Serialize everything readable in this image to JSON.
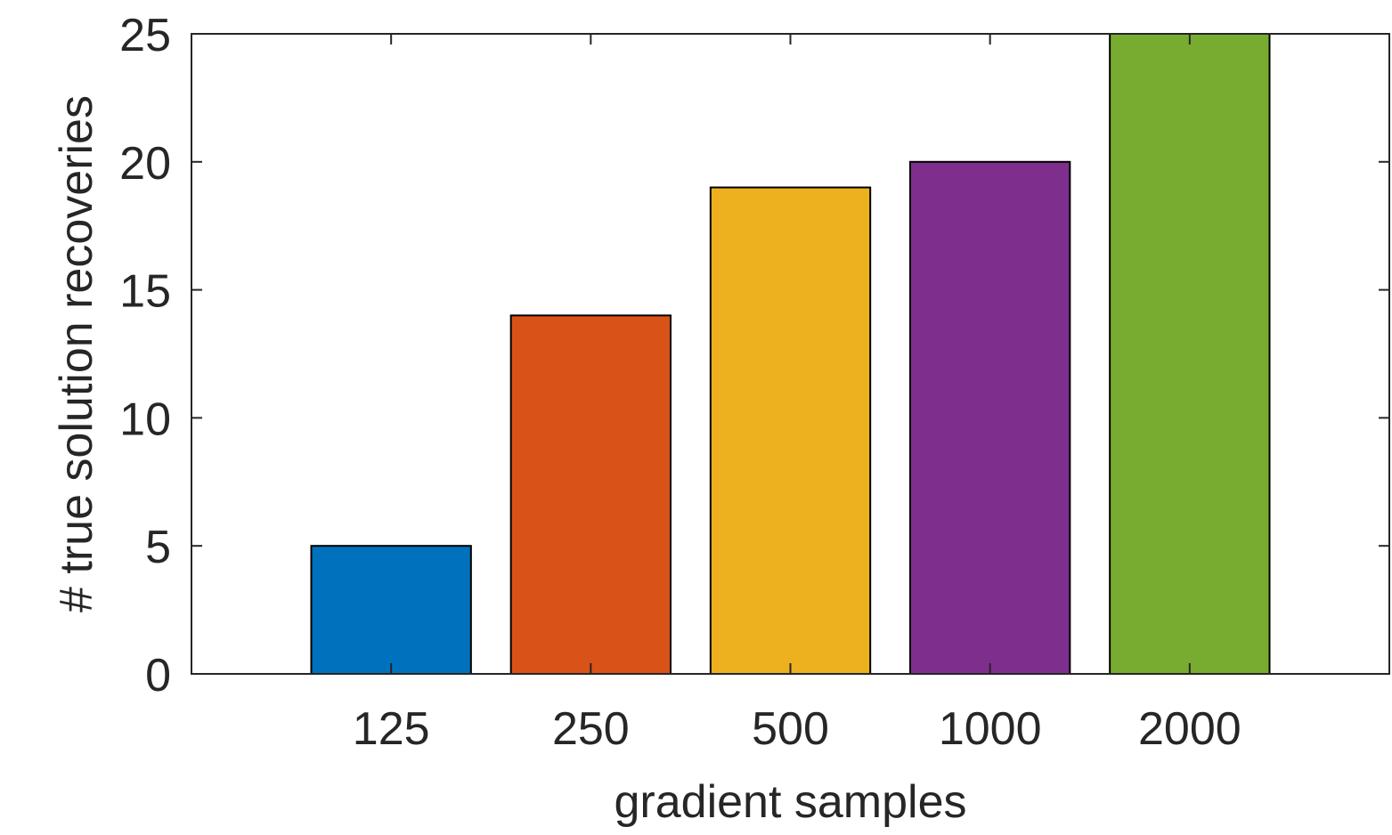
{
  "chart_data": {
    "type": "bar",
    "title": "",
    "xlabel": "gradient samples",
    "ylabel": "# true solution recoveries",
    "categories": [
      "125",
      "250",
      "500",
      "1000",
      "2000"
    ],
    "values": [
      5,
      14,
      19,
      20,
      25
    ],
    "colors": [
      "#0072BD",
      "#D95319",
      "#EDB120",
      "#7E2F8E",
      "#77AC30"
    ],
    "ylim": [
      0,
      25
    ],
    "yticks": [
      0,
      5,
      10,
      15,
      20,
      25
    ],
    "xlim": [
      0,
      6
    ],
    "grid": false,
    "legend": "none",
    "box": true
  }
}
